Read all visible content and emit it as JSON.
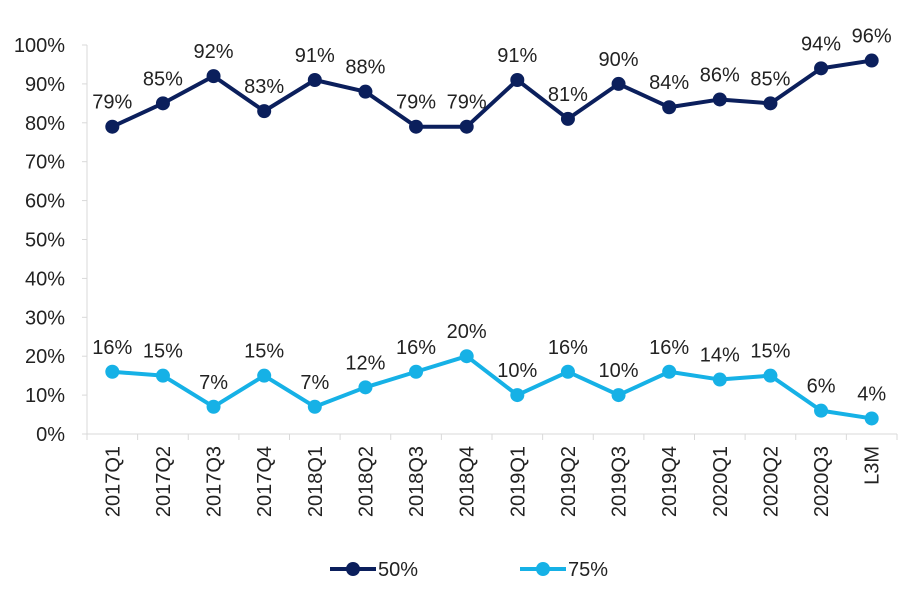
{
  "chart_data": {
    "type": "line",
    "title": "",
    "xlabel": "",
    "ylabel": "",
    "ylim": [
      0,
      100
    ],
    "yticks": [
      "0%",
      "10%",
      "20%",
      "30%",
      "40%",
      "50%",
      "60%",
      "70%",
      "80%",
      "90%",
      "100%"
    ],
    "categories": [
      "2017Q1",
      "2017Q2",
      "2017Q3",
      "2017Q4",
      "2018Q1",
      "2018Q2",
      "2018Q3",
      "2018Q4",
      "2019Q1",
      "2019Q2",
      "2019Q3",
      "2019Q4",
      "2020Q1",
      "2020Q2",
      "2020Q3",
      "L3M"
    ],
    "series": [
      {
        "name": "50%",
        "color": "#0b1f5c",
        "values": [
          79,
          85,
          92,
          83,
          91,
          88,
          79,
          79,
          91,
          81,
          90,
          84,
          86,
          85,
          94,
          96
        ],
        "labels": [
          "79%",
          "85%",
          "92%",
          "83%",
          "91%",
          "88%",
          "79%",
          "79%",
          "91%",
          "81%",
          "90%",
          "84%",
          "86%",
          "85%",
          "94%",
          "96%"
        ]
      },
      {
        "name": "75%",
        "color": "#16b1e6",
        "values": [
          16,
          15,
          7,
          15,
          7,
          12,
          16,
          20,
          10,
          16,
          10,
          16,
          14,
          15,
          6,
          4
        ],
        "labels": [
          "16%",
          "15%",
          "7%",
          "15%",
          "7%",
          "12%",
          "16%",
          "20%",
          "10%",
          "16%",
          "10%",
          "16%",
          "14%",
          "15%",
          "6%",
          "4%"
        ]
      }
    ],
    "legend": "bottom",
    "grid": false
  }
}
